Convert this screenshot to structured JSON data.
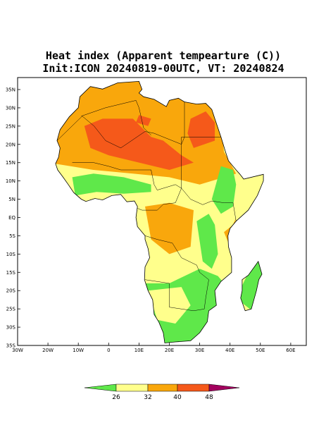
{
  "title": {
    "line1": "Heat index (Apparent tempearture (C))",
    "line2": "Init:ICON 20240819-00UTC, VT: 20240824"
  },
  "map": {
    "lat_labels": [
      "35N",
      "30N",
      "25N",
      "20N",
      "15N",
      "10N",
      "5N",
      "EQ",
      "5S",
      "10S",
      "15S",
      "20S",
      "25S",
      "30S",
      "35S"
    ],
    "lon_labels": [
      "30W",
      "20W",
      "10W",
      "0",
      "10E",
      "20E",
      "30E",
      "40E",
      "50E",
      "60E"
    ]
  },
  "legend": {
    "labels": [
      26,
      32,
      40,
      48
    ],
    "colors": [
      "#5fe84a",
      "#ffff8c",
      "#f9a70c",
      "#f5591a",
      "#a3005e"
    ]
  }
}
